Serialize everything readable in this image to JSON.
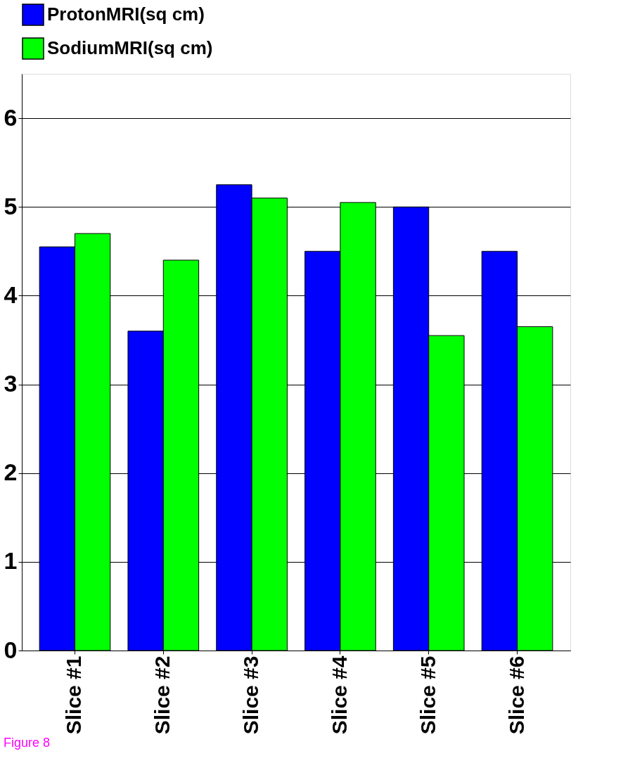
{
  "chart_data": {
    "type": "bar",
    "categories": [
      "Slice #1",
      "Slice #2",
      "Slice #3",
      "Slice #4",
      "Slice #5",
      "Slice #6"
    ],
    "series": [
      {
        "name": "ProtonMRI(sq cm)",
        "color": "#0000ff",
        "values": [
          4.55,
          3.6,
          5.25,
          4.5,
          5.0,
          4.5
        ]
      },
      {
        "name": "SodiumMRI(sq cm)",
        "color": "#00ff00",
        "values": [
          4.7,
          4.4,
          5.1,
          5.05,
          3.55,
          3.65
        ]
      }
    ],
    "ylim": [
      0,
      6.5
    ],
    "yticks": [
      0,
      1,
      2,
      3,
      4,
      5,
      6
    ],
    "grid": "y",
    "legend": "top",
    "annotations": [
      "Figure 8"
    ]
  }
}
